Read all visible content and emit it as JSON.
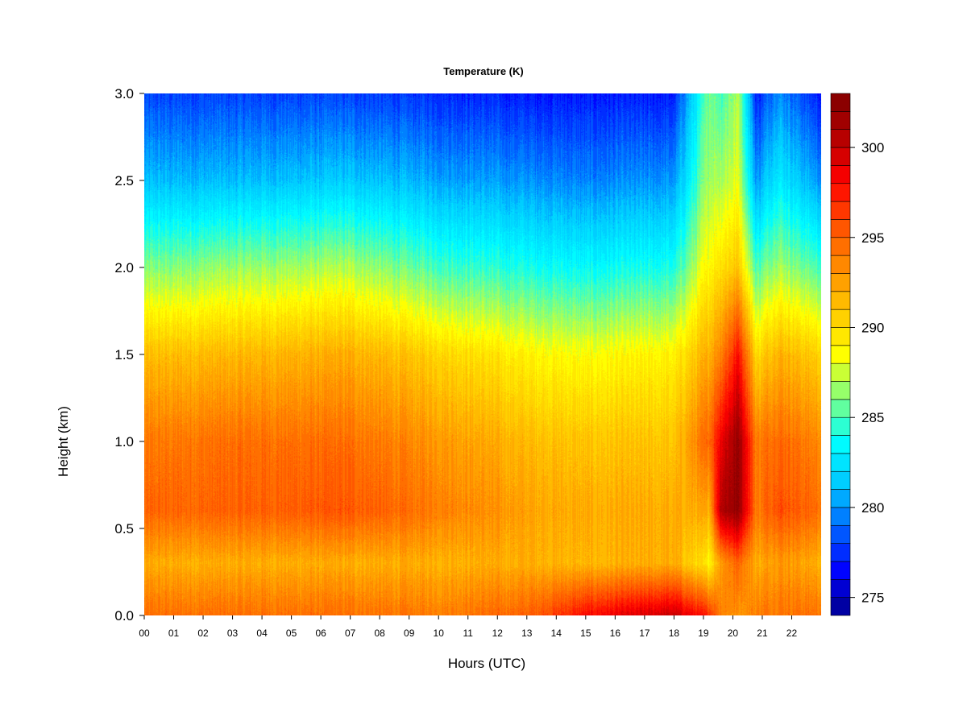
{
  "chart_data": {
    "type": "heatmap",
    "title": "Temperature (K)",
    "xlabel": "Hours (UTC)",
    "ylabel": "Height (km)",
    "xlim": [
      0,
      23
    ],
    "ylim": [
      0,
      3
    ],
    "x_ticks": [
      "00",
      "01",
      "02",
      "03",
      "04",
      "05",
      "06",
      "07",
      "08",
      "09",
      "10",
      "11",
      "12",
      "13",
      "14",
      "15",
      "16",
      "17",
      "18",
      "19",
      "20",
      "21",
      "22"
    ],
    "y_ticks": [
      "0.0",
      "0.5",
      "1.0",
      "1.5",
      "2.0",
      "2.5",
      "3.0"
    ],
    "colorbar": {
      "label_values": [
        275,
        280,
        285,
        290,
        295,
        300
      ],
      "labels": [
        "275",
        "280",
        "285",
        "290",
        "295",
        "300"
      ],
      "range": [
        274,
        303
      ],
      "levels": 29
    },
    "colormap": [
      "#00008b",
      "#0000ff",
      "#0064ff",
      "#00c8ff",
      "#00ffff",
      "#80ff80",
      "#ffff00",
      "#ffc800",
      "#ff8c00",
      "#ff5000",
      "#ff0000",
      "#b40000",
      "#800000"
    ],
    "profiles": [
      {
        "time": 0.0,
        "heights": [
          0.0,
          0.3,
          0.6,
          1.0,
          1.5,
          2.0,
          2.5,
          3.0
        ],
        "temps": [
          294.5,
          292.0,
          294.8,
          294.0,
          291.2,
          286.0,
          281.0,
          278.0
        ]
      },
      {
        "time": 3.0,
        "heights": [
          0.0,
          0.3,
          0.6,
          1.0,
          1.5,
          2.0,
          2.5,
          3.0
        ],
        "temps": [
          294.5,
          292.0,
          295.0,
          294.5,
          291.5,
          286.5,
          281.0,
          278.0
        ]
      },
      {
        "time": 7.0,
        "heights": [
          0.0,
          0.3,
          0.6,
          1.0,
          1.5,
          2.0,
          2.5,
          3.0
        ],
        "temps": [
          294.5,
          292.0,
          295.5,
          294.5,
          292.0,
          287.0,
          281.5,
          278.0
        ]
      },
      {
        "time": 10.0,
        "heights": [
          0.0,
          0.3,
          0.6,
          1.0,
          1.5,
          2.0,
          2.5,
          3.0
        ],
        "temps": [
          294.0,
          292.0,
          294.0,
          293.0,
          290.5,
          285.0,
          280.5,
          277.5
        ]
      },
      {
        "time": 13.0,
        "heights": [
          0.0,
          0.3,
          0.6,
          1.0,
          1.5,
          2.0,
          2.5,
          3.0
        ],
        "temps": [
          295.0,
          292.0,
          292.5,
          291.5,
          289.0,
          284.0,
          280.0,
          277.0
        ]
      },
      {
        "time": 15.0,
        "heights": [
          0.0,
          0.3,
          0.6,
          1.0,
          1.5,
          2.0,
          2.5,
          3.0
        ],
        "temps": [
          298.0,
          291.5,
          292.0,
          291.0,
          288.5,
          283.5,
          279.5,
          277.0
        ]
      },
      {
        "time": 18.0,
        "heights": [
          0.0,
          0.3,
          0.6,
          1.0,
          1.5,
          2.0,
          2.5,
          3.0
        ],
        "temps": [
          300.0,
          292.0,
          292.0,
          291.0,
          289.0,
          284.0,
          280.0,
          277.0
        ]
      },
      {
        "time": 19.2,
        "heights": [
          0.0,
          0.3,
          0.6,
          1.0,
          1.5,
          2.0,
          2.5,
          3.0
        ],
        "temps": [
          297.0,
          289.0,
          292.0,
          295.0,
          292.0,
          289.0,
          287.0,
          286.0
        ]
      },
      {
        "time": 19.6,
        "heights": [
          0.0,
          0.3,
          0.6,
          1.0,
          1.5,
          2.0,
          2.5,
          3.0
        ],
        "temps": [
          294.0,
          293.0,
          301.0,
          299.0,
          294.0,
          290.0,
          287.0,
          285.0
        ]
      },
      {
        "time": 20.2,
        "heights": [
          0.0,
          0.3,
          0.6,
          1.0,
          1.5,
          2.0,
          2.5,
          3.0
        ],
        "temps": [
          293.0,
          295.0,
          302.0,
          302.0,
          298.0,
          291.0,
          288.0,
          287.0
        ]
      },
      {
        "time": 20.8,
        "heights": [
          0.0,
          0.3,
          0.6,
          1.0,
          1.5,
          2.0,
          2.5,
          3.0
        ],
        "temps": [
          294.0,
          292.0,
          294.0,
          294.0,
          290.0,
          285.0,
          280.0,
          277.0
        ]
      },
      {
        "time": 21.5,
        "heights": [
          0.0,
          0.3,
          0.6,
          1.0,
          1.5,
          2.0,
          2.5,
          3.0
        ],
        "temps": [
          294.5,
          293.0,
          296.0,
          295.0,
          292.0,
          287.0,
          283.0,
          280.0
        ]
      },
      {
        "time": 23.0,
        "heights": [
          0.0,
          0.3,
          0.6,
          1.0,
          1.5,
          2.0,
          2.5,
          3.0
        ],
        "temps": [
          294.5,
          292.0,
          294.5,
          293.5,
          290.5,
          285.0,
          280.0,
          277.0
        ]
      }
    ]
  }
}
